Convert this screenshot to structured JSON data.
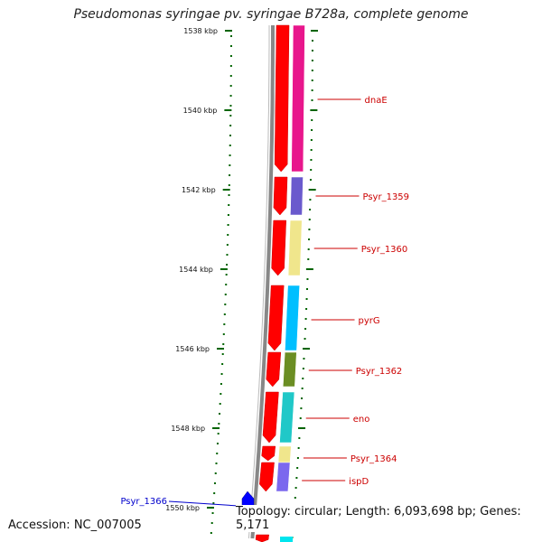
{
  "title": "Pseudomonas syringae pv. syringae B728a, complete genome",
  "footer": {
    "accession": "Accession: NC_007005",
    "summary": "Topology: circular; Length: 6,093,698 bp; Genes: 5,171"
  },
  "ruler": {
    "labels": [
      "1538 kbp",
      "1540 kbp",
      "1542 kbp",
      "1544 kbp",
      "1546 kbp",
      "1548 kbp",
      "1550 kbp"
    ],
    "color": "#006400"
  },
  "genes": [
    {
      "label": "dnaE",
      "color": "#e8168c",
      "label_color": "#cc0000"
    },
    {
      "label": "Psyr_1359",
      "color": "#6a5acd",
      "label_color": "#cc0000"
    },
    {
      "label": "Psyr_1360",
      "color": "#f0e68c",
      "label_color": "#cc0000"
    },
    {
      "label": "pyrG",
      "color": "#00bfff",
      "label_color": "#cc0000"
    },
    {
      "label": "Psyr_1362",
      "color": "#6b8e23",
      "label_color": "#cc0000"
    },
    {
      "label": "eno",
      "color": "#20c8c8",
      "label_color": "#cc0000"
    },
    {
      "label": "Psyr_1364",
      "color": "#f0e68c",
      "label_color": "#cc0000"
    },
    {
      "label": "ispD",
      "color": "#7b68ee",
      "label_color": "#cc0000"
    },
    {
      "label": "Psyr_1366",
      "color": "#0000ff",
      "label_color": "#0000cc"
    }
  ],
  "colors": {
    "cds_strand": "#ff0000",
    "backbone": "#888888"
  }
}
